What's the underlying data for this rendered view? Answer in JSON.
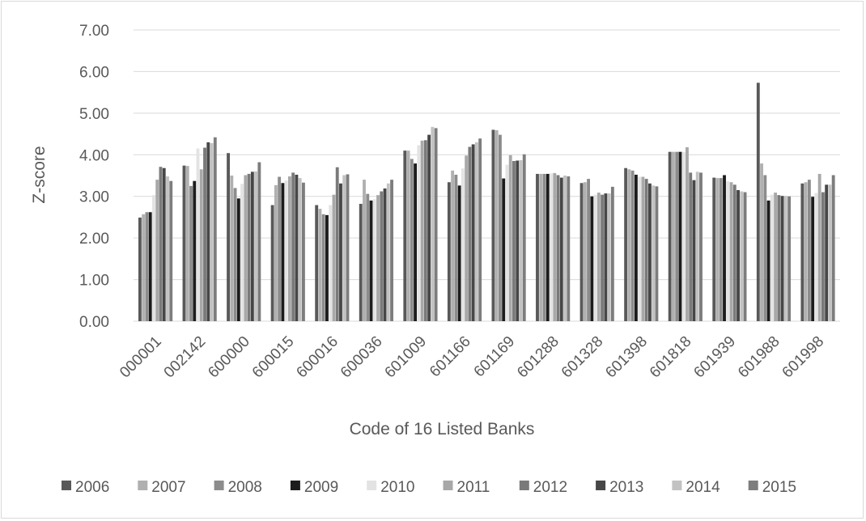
{
  "chart_data": {
    "type": "bar",
    "title": "",
    "xlabel": "Code of 16 Listed Banks",
    "ylabel": "Z-score",
    "ylim": [
      0,
      7
    ],
    "yticks": [
      "0.00",
      "1.00",
      "2.00",
      "3.00",
      "4.00",
      "5.00",
      "6.00",
      "7.00"
    ],
    "grid": true,
    "legend_position": "bottom",
    "categories": [
      "000001",
      "002142",
      "600000",
      "600015",
      "600016",
      "600036",
      "601009",
      "601166",
      "601169",
      "601288",
      "601328",
      "601398",
      "601818",
      "601939",
      "601988",
      "601998"
    ],
    "series": [
      {
        "name": "2006",
        "color": "#595959",
        "values": [
          2.49,
          3.74,
          4.04,
          2.79,
          2.79,
          2.82,
          4.1,
          3.34,
          4.6,
          3.54,
          3.32,
          3.68,
          4.07,
          3.45,
          5.73,
          3.31
        ]
      },
      {
        "name": "2007",
        "color": "#b0b0b0",
        "values": [
          2.57,
          3.73,
          3.5,
          3.27,
          2.7,
          3.4,
          4.1,
          3.62,
          4.59,
          3.54,
          3.34,
          3.65,
          4.07,
          3.44,
          3.79,
          3.34
        ]
      },
      {
        "name": "2008",
        "color": "#8c8c8c",
        "values": [
          2.62,
          3.25,
          3.2,
          3.47,
          2.57,
          3.06,
          3.9,
          3.52,
          4.48,
          3.54,
          3.42,
          3.62,
          4.07,
          3.44,
          3.51,
          3.4
        ]
      },
      {
        "name": "2009",
        "color": "#1c1c1c",
        "values": [
          2.62,
          3.37,
          2.95,
          3.32,
          2.55,
          2.9,
          3.79,
          3.26,
          3.43,
          3.54,
          3.0,
          3.52,
          4.07,
          3.51,
          2.9,
          2.99
        ]
      },
      {
        "name": "2010",
        "color": "#e3e3e3",
        "values": [
          3.03,
          4.15,
          3.3,
          3.38,
          2.79,
          2.93,
          4.23,
          3.67,
          3.76,
          3.55,
          3.04,
          3.47,
          4.07,
          3.36,
          3.04,
          3.08
        ]
      },
      {
        "name": "2011",
        "color": "#a8a8a8",
        "values": [
          3.4,
          3.65,
          3.51,
          3.48,
          3.04,
          3.03,
          4.34,
          3.98,
          3.99,
          3.56,
          3.09,
          3.47,
          4.18,
          3.34,
          3.09,
          3.54
        ]
      },
      {
        "name": "2012",
        "color": "#7a7a7a",
        "values": [
          3.71,
          4.17,
          3.54,
          3.57,
          3.7,
          3.12,
          4.35,
          4.19,
          3.85,
          3.51,
          3.04,
          3.42,
          3.57,
          3.28,
          3.03,
          3.1
        ]
      },
      {
        "name": "2013",
        "color": "#474747",
        "values": [
          3.68,
          4.3,
          3.59,
          3.52,
          3.31,
          3.19,
          4.48,
          4.25,
          3.86,
          3.45,
          3.07,
          3.31,
          3.39,
          3.15,
          3.01,
          3.28
        ]
      },
      {
        "name": "2014",
        "color": "#c2c2c2",
        "values": [
          3.48,
          4.28,
          3.6,
          3.44,
          3.51,
          3.31,
          4.67,
          4.3,
          3.87,
          3.5,
          3.07,
          3.26,
          3.59,
          3.12,
          3.01,
          3.28
        ]
      },
      {
        "name": "2015",
        "color": "#7d7d7d",
        "values": [
          3.37,
          4.42,
          3.82,
          3.33,
          3.53,
          3.4,
          4.64,
          4.39,
          4.01,
          3.48,
          3.23,
          3.24,
          3.57,
          3.1,
          3.0,
          3.51
        ]
      }
    ]
  }
}
